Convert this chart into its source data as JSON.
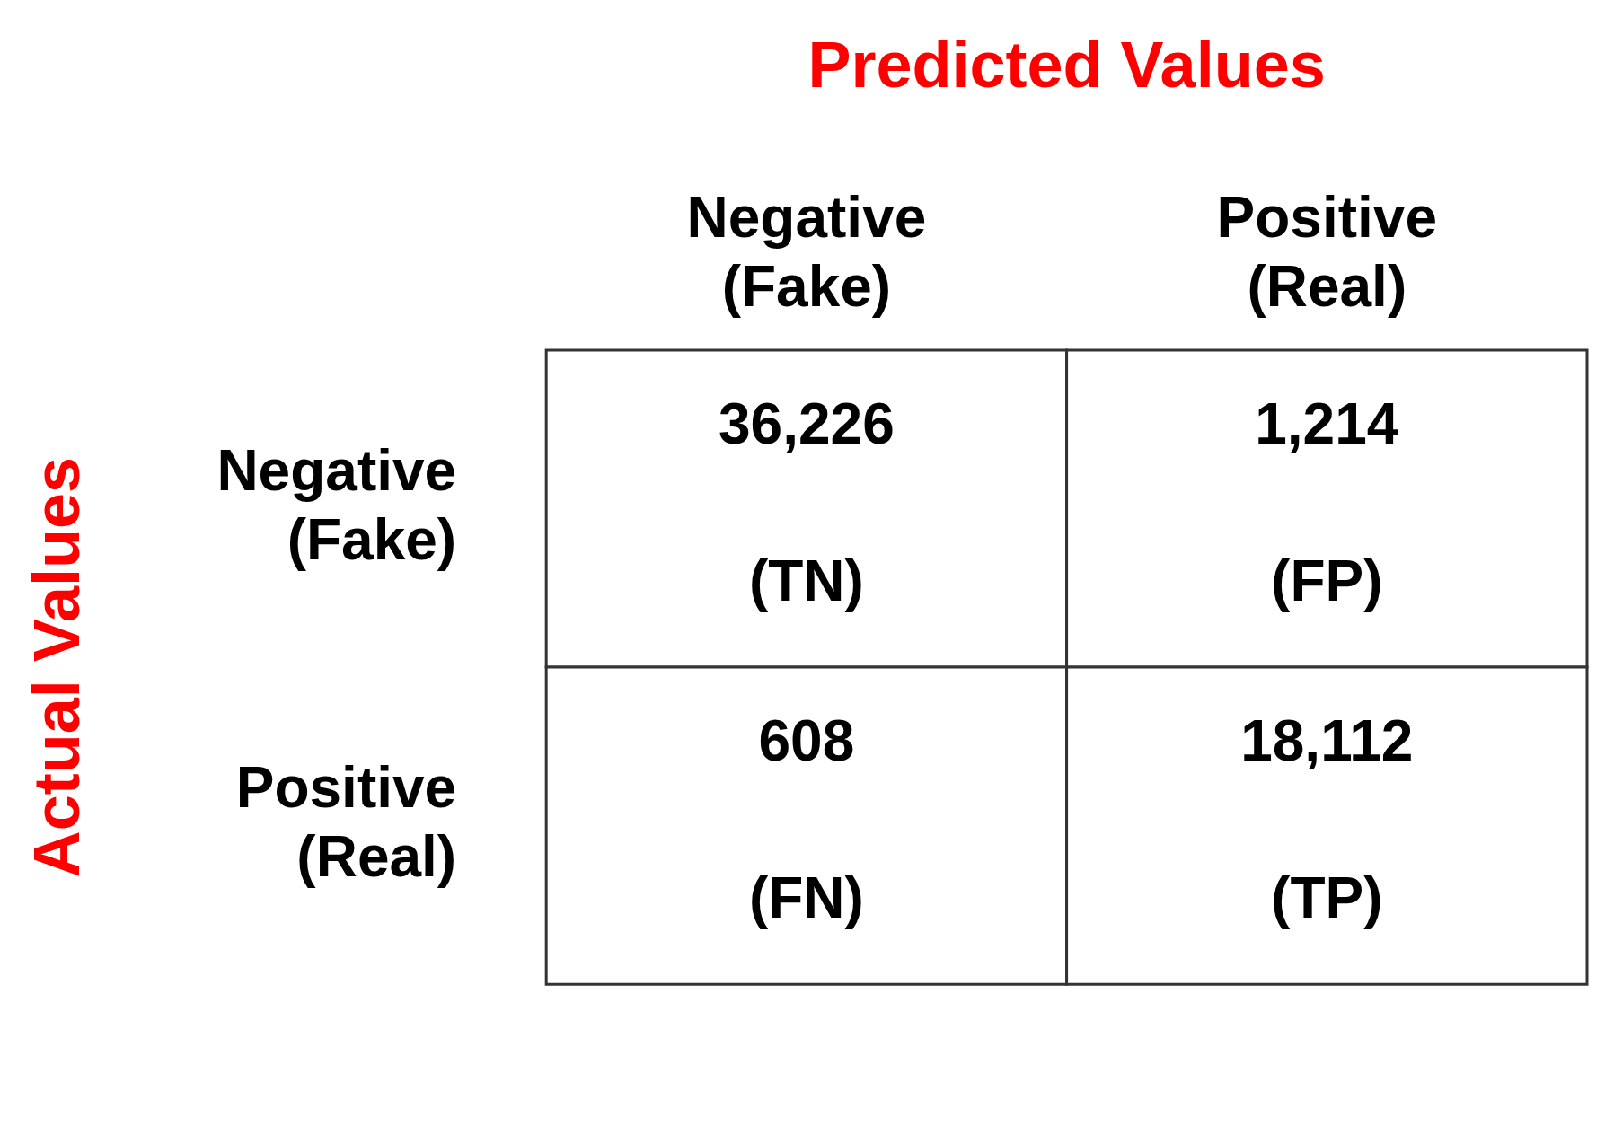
{
  "chart_data": {
    "type": "heatmap",
    "xlabel": "Predicted Values",
    "ylabel": "Actual Values",
    "categories": [
      "Negative (Fake)",
      "Positive (Real)"
    ],
    "y_categories": [
      "Negative (Fake)",
      "Positive (Real)"
    ],
    "cells": [
      [
        36226,
        1214
      ],
      [
        608,
        18112
      ]
    ],
    "cell_labels": [
      [
        "36,226",
        "1,214"
      ],
      [
        "608",
        "18,112"
      ]
    ],
    "annotations": [
      "(TN)",
      "(FP)",
      "(FN)",
      "(TP)"
    ],
    "color": "#ffffff",
    "data_labels": true
  }
}
